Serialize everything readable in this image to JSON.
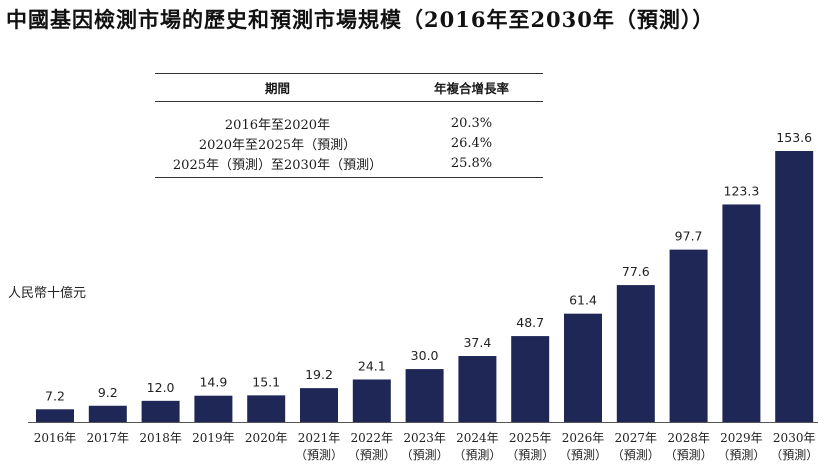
{
  "title": "中國基因檢測市場的歷史和預測市場規模（2016年至2030年（預測））",
  "cagr_table": {
    "headers": [
      "期間",
      "年複合增長率"
    ],
    "rows": [
      {
        "period": "2016年至2020年",
        "rate": "20.3%"
      },
      {
        "period": "2020年至2025年（預測）",
        "rate": "26.4%"
      },
      {
        "period": "2025年（預測）至2030年（預測）",
        "rate": "25.8%"
      }
    ]
  },
  "chart_data": {
    "type": "bar",
    "ylabel": "人民幣十億元",
    "xlabel": "",
    "categories": [
      "2016年",
      "2017年",
      "2018年",
      "2019年",
      "2020年",
      "2021年",
      "2022年",
      "2023年",
      "2024年",
      "2025年",
      "2026年",
      "2027年",
      "2028年",
      "2029年",
      "2030年"
    ],
    "category_notes": [
      "",
      "",
      "",
      "",
      "",
      "（預測）",
      "（預測）",
      "（預測）",
      "（預測）",
      "（預測）",
      "（預測）",
      "（預測）",
      "（預測）",
      "（預測）",
      "（預測）"
    ],
    "values": [
      7.2,
      9.2,
      12.0,
      14.9,
      15.1,
      19.2,
      24.1,
      30.0,
      37.4,
      48.7,
      61.4,
      77.6,
      97.7,
      123.3,
      153.6
    ],
    "value_labels": [
      "7.2",
      "9.2",
      "12.0",
      "14.9",
      "15.1",
      "19.2",
      "24.1",
      "30.0",
      "37.4",
      "48.7",
      "61.4",
      "77.6",
      "97.7",
      "123.3",
      "153.6"
    ],
    "ylim": [
      0,
      153.6
    ],
    "grid": false,
    "bar_color": "#1f2757"
  }
}
